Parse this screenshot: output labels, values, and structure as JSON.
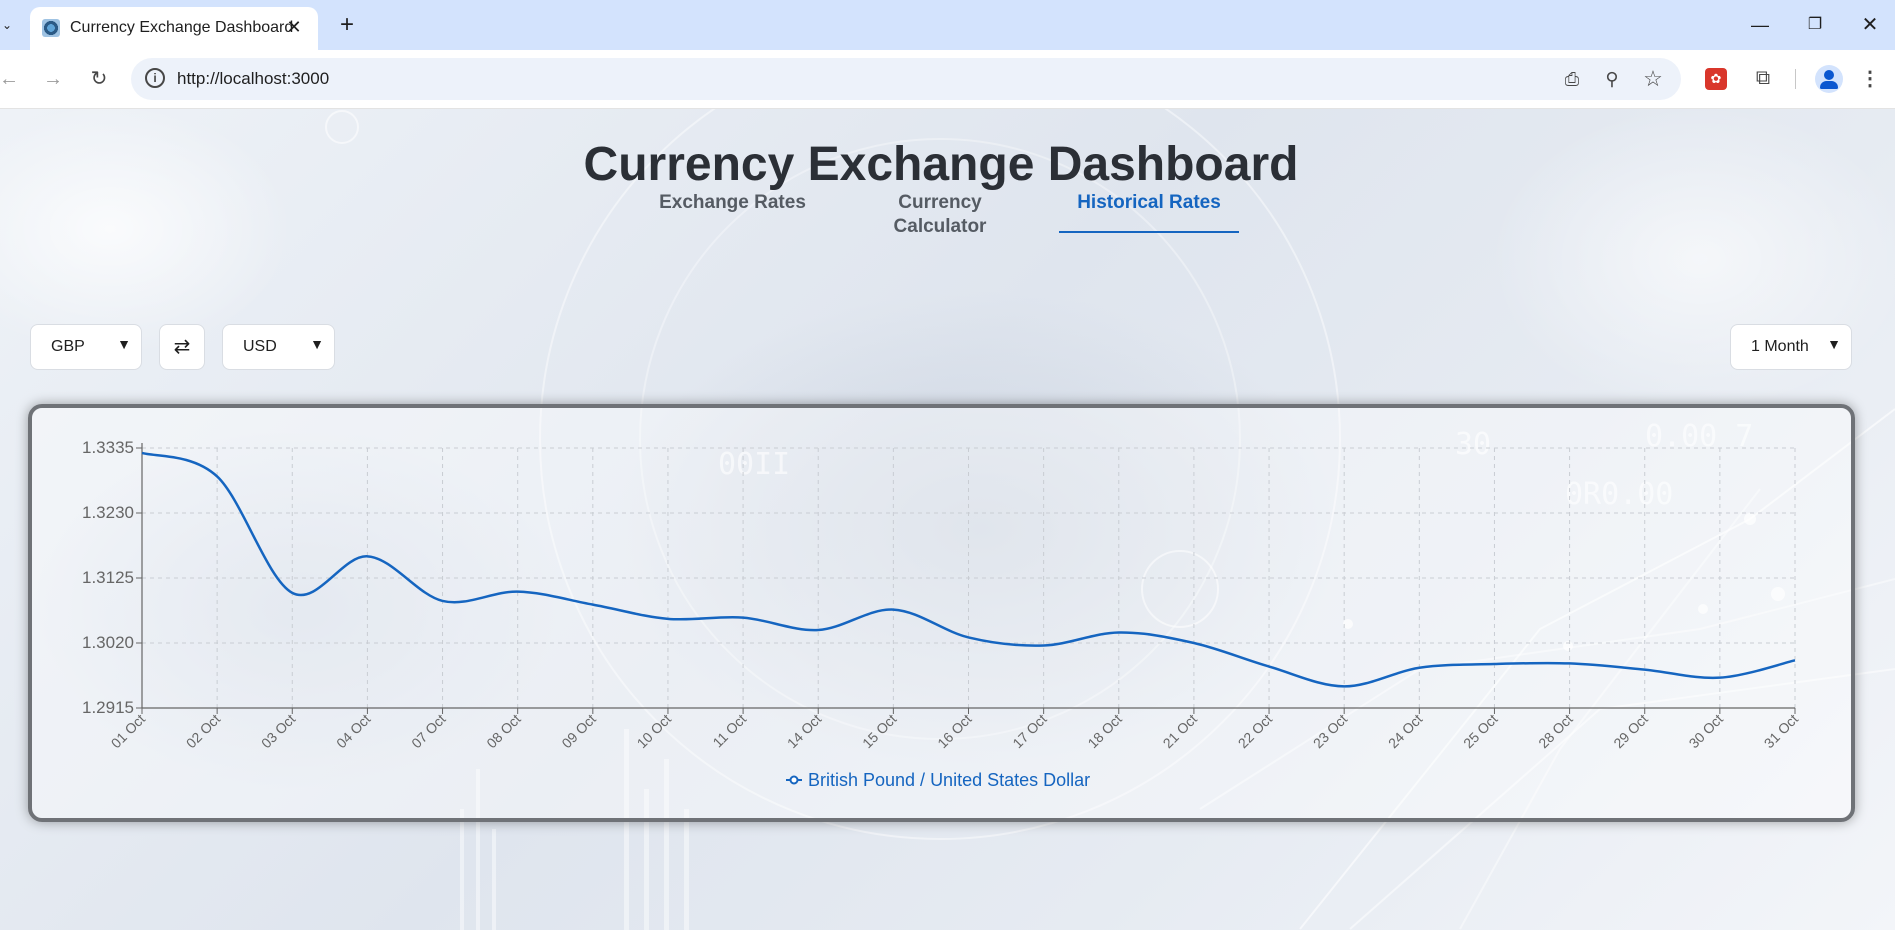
{
  "browser": {
    "tab_title": "Currency Exchange Dashboard",
    "url": "http://localhost:3000",
    "icons": [
      "tab-list-icon",
      "favicon-icon",
      "close-icon",
      "plus-icon",
      "minimize-icon",
      "restore-icon",
      "window-close-icon",
      "back-icon",
      "forward-icon",
      "reload-icon",
      "site-info-icon",
      "install-app-icon",
      "zoom-icon",
      "bookmark-star-icon",
      "extension-icon",
      "puzzle-icon",
      "profile-icon",
      "menu-icon"
    ]
  },
  "page": {
    "title": "Currency Exchange Dashboard",
    "tabs": [
      {
        "label": "Exchange Rates",
        "active": false
      },
      {
        "label": "Currency Calculator",
        "active": false
      },
      {
        "label": "Historical Rates",
        "active": true
      }
    ],
    "controls": {
      "from_currency": "GBP",
      "swap_symbol": "⇄",
      "to_currency": "USD",
      "range": "1 Month"
    },
    "accent_color": "#1565c0"
  },
  "chart_data": {
    "type": "line",
    "categories": [
      "01 Oct",
      "02 Oct",
      "03 Oct",
      "04 Oct",
      "07 Oct",
      "08 Oct",
      "09 Oct",
      "10 Oct",
      "11 Oct",
      "14 Oct",
      "15 Oct",
      "16 Oct",
      "17 Oct",
      "18 Oct",
      "21 Oct",
      "22 Oct",
      "23 Oct",
      "24 Oct",
      "25 Oct",
      "28 Oct",
      "29 Oct",
      "30 Oct",
      "31 Oct"
    ],
    "series": [
      {
        "name": "British Pound / United States Dollar",
        "color": "#1565c0",
        "values": [
          1.3327,
          1.3289,
          1.3101,
          1.316,
          1.3088,
          1.3103,
          1.3082,
          1.3059,
          1.3061,
          1.3041,
          1.3074,
          1.3029,
          1.3016,
          1.3037,
          1.302,
          1.2982,
          1.295,
          1.298,
          1.2986,
          1.2987,
          1.2977,
          1.2964,
          1.2992
        ]
      }
    ],
    "y_ticks": [
      "1.3335",
      "1.3230",
      "1.3125",
      "1.3020",
      "1.2915"
    ],
    "ylim": [
      1.2915,
      1.3335
    ],
    "grid": true,
    "legend_position": "bottom-center"
  }
}
